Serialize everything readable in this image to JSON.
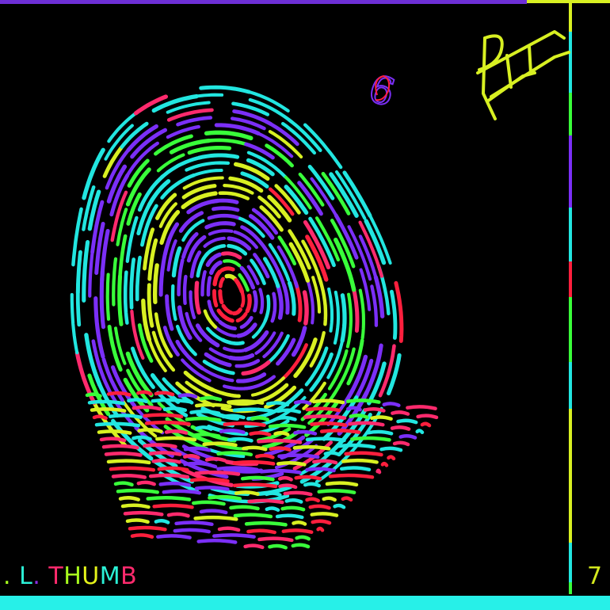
{
  "card": {
    "caption": [
      {
        "text": ".",
        "color": "#a8ff1e"
      },
      {
        "text": " L",
        "color": "#2bf0d6"
      },
      {
        "text": ".",
        "color": "#8a2be2"
      },
      {
        "text": " T",
        "color": "#ff2a6d"
      },
      {
        "text": "H",
        "color": "#a8ff1e"
      },
      {
        "text": "U",
        "color": "#e4f21a"
      },
      {
        "text": "M",
        "color": "#2bf0d6"
      },
      {
        "text": "B",
        "color": "#ff2a6d"
      }
    ],
    "cell_number": "7",
    "handwritten_number": "6",
    "initials": "PT"
  },
  "palette": {
    "violet": "#7b2ff7",
    "cyan": "#22e6e0",
    "green": "#39ff3a",
    "yellow": "#d8f022",
    "red": "#ff1f3d",
    "crimson": "#ff2a6d",
    "background": "#000000",
    "bottom_bar": "#27f0e8",
    "top_bar": "#6d2fd6"
  }
}
